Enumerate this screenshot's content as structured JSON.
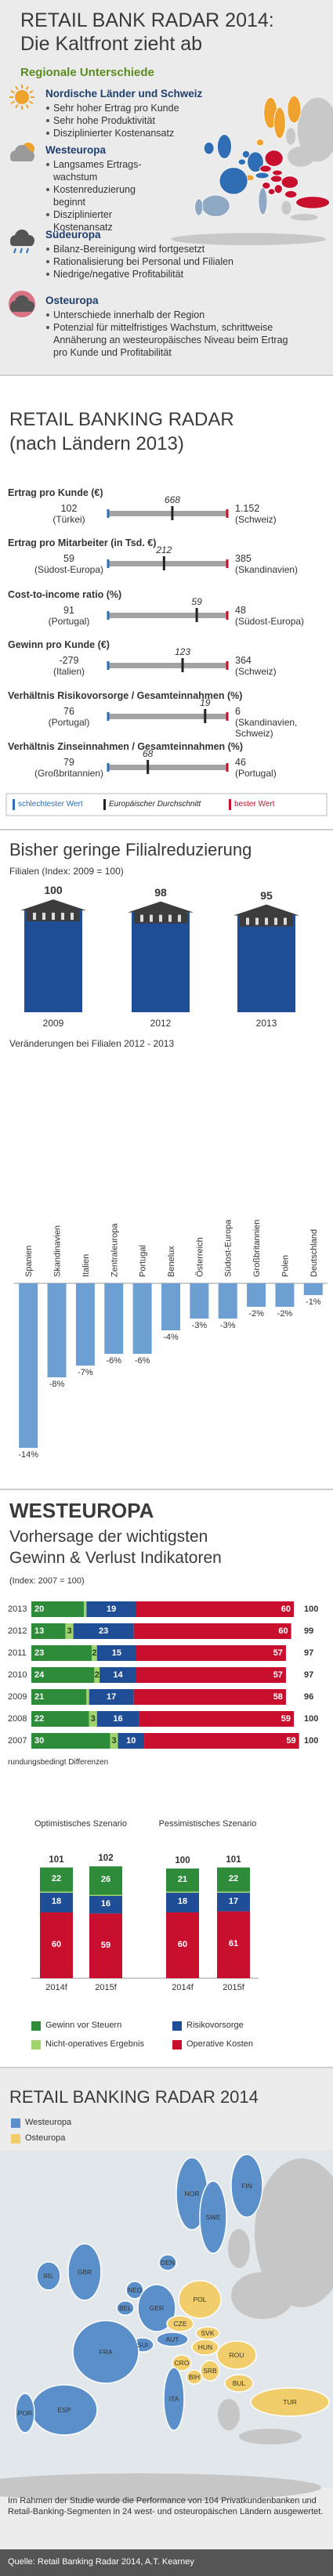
{
  "header": {
    "title": "RETAIL BANK RADAR 2014:",
    "subtitle": "Die Kaltfront zieht ab",
    "section": "Regionale Unterschiede"
  },
  "regions": [
    {
      "name": "Nordische Länder und Schweiz",
      "color": "#f0a22e",
      "points": [
        "Sehr hoher Ertrag pro Kunde",
        "Sehr hohe Produktivität",
        "Disziplinierter Kostenansatz"
      ]
    },
    {
      "name": "Westeuropa",
      "color": "#2f6db5",
      "points": [
        "Langsames Ertrags­wachstum",
        "Kostenreduzierung beginnt",
        "Disziplinierter Kostenansatz"
      ]
    },
    {
      "name": "Südeuropa",
      "color": "#8fa9c4",
      "points": [
        "Bilanz-Bereinigung wird fortgesetzt",
        "Rationalisierung bei Personal und Filialen",
        "Niedrige/negative Profitabilität"
      ]
    },
    {
      "name": "Osteuropa",
      "color": "#c8102e",
      "points": [
        "Unterschiede innerhalb der Region",
        "Potenzial für mittelfristiges Wachstum, schrittweise Annäherung an westeuropäisches Niveau beim Ertrag pro Kunde und Profitabilität"
      ]
    }
  ],
  "radar": {
    "title": "RETAIL BANKING RADAR",
    "subtitle": "(nach Ländern 2013)",
    "metrics": [
      {
        "label": "Ertrag pro Kunde (€)",
        "worst": 102,
        "worst_country": "(Türkei)",
        "average": 668,
        "best": {
          "value": 1152,
          "label": "1.152"
        },
        "best_country": "(Schweiz)"
      },
      {
        "label": "Ertrag pro Mitarbeiter (in Tsd. €)",
        "worst": 59,
        "worst_country": "(Südost-Europa)",
        "average": 212,
        "best": 385,
        "best_country": "(Skandinavien)"
      },
      {
        "label": "Cost-to-income ratio (%)",
        "worst": 91,
        "worst_country": "(Portugal)",
        "average": 59,
        "best": 48,
        "best_country": "(Südost-Europa)"
      },
      {
        "label": "Gewinn pro Kunde (€)",
        "worst": -279,
        "worst_country": "(Italien)",
        "average": 123,
        "best": 364,
        "best_country": "(Schweiz)"
      },
      {
        "label": "Verhältnis Risikovorsorge / Gesamteinnahmen (%)",
        "worst": 76,
        "worst_country": "(Portugal)",
        "average": 19,
        "best": 6,
        "best_country": "(Skandinavien, Schweiz)"
      },
      {
        "label": "Verhältnis Zinseinnahmen / Gesamteinnahmen (%)",
        "worst": 79,
        "worst_country": "(Großbritannien)",
        "average": 68,
        "best": 46,
        "best_country": "(Portugal)"
      }
    ],
    "legend": {
      "worst": "schlechtester Wert",
      "average": "Europäischer Durchschnitt",
      "best": "bester Wert"
    },
    "colors": {
      "worst": "#2f6db5",
      "average": "#222222",
      "best": "#c8102e",
      "bar": "#a3a3a3"
    }
  },
  "branches": {
    "type": "bar",
    "title": "Bisher geringe Filialreduzierung",
    "subtitle": "Filialen (Index: 2009 = 100)",
    "categories": [
      "2009",
      "2012",
      "2013"
    ],
    "values": [
      100,
      98,
      95
    ],
    "color": "#1f4e96"
  },
  "branch_changes": {
    "type": "bar",
    "title": "Veränderungen bei Filialen 2012 - 2013",
    "categories": [
      "Spanien",
      "Skandinavien",
      "Italien",
      "Zentraleuropa",
      "Portugal",
      "Benelux",
      "Österreich",
      "Südost-Europa",
      "Großbritannien",
      "Polen",
      "Deutschland"
    ],
    "values": [
      -14,
      -8,
      -7,
      -6,
      -6,
      -4,
      -3,
      -3,
      -2,
      -2,
      -1
    ],
    "value_labels": [
      "-14%",
      "-8%",
      "-7%",
      "-6%",
      "-6%",
      "-4%",
      "-3%",
      "-3%",
      "-2%",
      "-2%",
      "-1%"
    ],
    "color": "#6d9fd3"
  },
  "forecast": {
    "type": "bar",
    "title": "WESTEUROPA",
    "subtitle": "Vorhersage der wichtigsten Gewinn & Verlust Indikatoren",
    "index_label": "(Index: 2007 = 100)",
    "categories": [
      "2013",
      "2012",
      "2011",
      "2010",
      "2009",
      "2008",
      "2007"
    ],
    "series": [
      {
        "name": "Gewinn vor Steuern",
        "color": "#2e8b3a",
        "values": [
          20,
          13,
          23,
          24,
          21,
          22,
          30
        ]
      },
      {
        "name": "Nicht-operatives Ergebnis",
        "color": "#a2d46e",
        "values": [
          1,
          3,
          2,
          2,
          1,
          3,
          3
        ],
        "value_labels": [
          null,
          "3",
          "2",
          "2",
          null,
          "3",
          "3"
        ]
      },
      {
        "name": "Risikovorsorge",
        "color": "#1f4e96",
        "values": [
          19,
          23,
          15,
          14,
          17,
          16,
          10
        ]
      },
      {
        "name": "Operative Kosten",
        "color": "#c8102e",
        "values": [
          60,
          60,
          57,
          57,
          58,
          59,
          59
        ]
      }
    ],
    "totals": [
      100,
      99,
      97,
      97,
      96,
      100,
      100
    ],
    "note": "rundungsbedingt Differenzen"
  },
  "scenarios": {
    "type": "bar",
    "groups": [
      "Optimistisches Szenario",
      "Pessimistisches Szenario"
    ],
    "categories": [
      "2014f",
      "2015f",
      "2014f",
      "2015f"
    ],
    "series": [
      {
        "values": [
          22,
          26,
          21,
          22
        ]
      },
      {
        "values": [
          1,
          1,
          1,
          1
        ],
        "value_labels": [
          null,
          null,
          null,
          null
        ]
      },
      {
        "values": [
          18,
          16,
          18,
          17
        ]
      },
      {
        "values": [
          60,
          59,
          60,
          61
        ]
      }
    ],
    "totals": [
      101,
      102,
      100,
      101
    ]
  },
  "map": {
    "title": "RETAIL BANKING RADAR 2014",
    "legend": [
      {
        "name": "Westeuropa",
        "color": "#5b8fc9"
      },
      {
        "name": "Osteuropa",
        "color": "#f2cd6b"
      }
    ],
    "countries": [
      {
        "code": "NOR",
        "region": 0
      },
      {
        "code": "SWE",
        "region": 0
      },
      {
        "code": "FIN",
        "region": 0
      },
      {
        "code": "DEN",
        "region": 0
      },
      {
        "code": "IRL",
        "region": 0
      },
      {
        "code": "GBR",
        "region": 0
      },
      {
        "code": "NED",
        "region": 0
      },
      {
        "code": "BEL",
        "region": 0
      },
      {
        "code": "GER",
        "region": 0
      },
      {
        "code": "POL",
        "region": 1
      },
      {
        "code": "CZE",
        "region": 1
      },
      {
        "code": "SVK",
        "region": 1
      },
      {
        "code": "AUT",
        "region": 0
      },
      {
        "code": "SUI",
        "region": 0
      },
      {
        "code": "HUN",
        "region": 1
      },
      {
        "code": "FRA",
        "region": 0
      },
      {
        "code": "ROU",
        "region": 1
      },
      {
        "code": "CRO",
        "region": 1
      },
      {
        "code": "SRB",
        "region": 1
      },
      {
        "code": "BIH",
        "region": 1
      },
      {
        "code": "BUL",
        "region": 1
      },
      {
        "code": "ITA",
        "region": 0
      },
      {
        "code": "TUR",
        "region": 1
      },
      {
        "code": "ESP",
        "region": 0
      },
      {
        "code": "POR",
        "region": 0
      }
    ],
    "text": "Im Rahmen der Studie wurde die Performance von 104 Privatkundenbanken und Retail-Banking-Segmenten in 24 west- und osteuropäischen Ländern ausgewertet.",
    "source": "Quelle: Retail Banking Radar 2014, A.T. Kearney"
  }
}
